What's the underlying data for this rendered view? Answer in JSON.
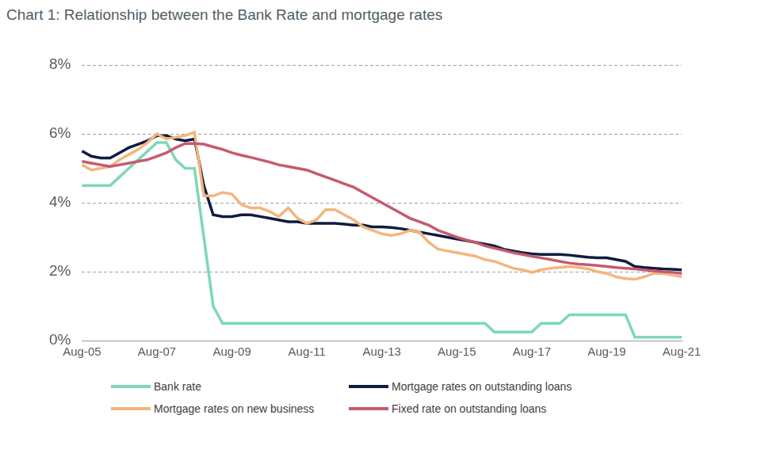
{
  "chart_data": {
    "type": "line",
    "title": "Chart 1: Relationship between the Bank Rate and mortgage rates",
    "categories": [
      "Aug-05",
      null,
      null,
      null,
      null,
      null,
      null,
      null,
      "Aug-07",
      null,
      null,
      null,
      null,
      null,
      null,
      null,
      "Aug-09",
      null,
      null,
      null,
      null,
      null,
      null,
      null,
      "Aug-11",
      null,
      null,
      null,
      null,
      null,
      null,
      null,
      "Aug-13",
      null,
      null,
      null,
      null,
      null,
      null,
      null,
      "Aug-15",
      null,
      null,
      null,
      null,
      null,
      null,
      null,
      "Aug-17",
      null,
      null,
      null,
      null,
      null,
      null,
      null,
      "Aug-19",
      null,
      null,
      null,
      null,
      null,
      null,
      null,
      "Aug-21"
    ],
    "series": [
      {
        "name": "Bank rate",
        "color": "#7dd8b5",
        "values": [
          4.5,
          4.5,
          4.5,
          4.5,
          4.75,
          5.0,
          5.25,
          5.5,
          5.75,
          5.75,
          5.25,
          5.0,
          5.0,
          3.0,
          1.0,
          0.5,
          0.5,
          0.5,
          0.5,
          0.5,
          0.5,
          0.5,
          0.5,
          0.5,
          0.5,
          0.5,
          0.5,
          0.5,
          0.5,
          0.5,
          0.5,
          0.5,
          0.5,
          0.5,
          0.5,
          0.5,
          0.5,
          0.5,
          0.5,
          0.5,
          0.5,
          0.5,
          0.5,
          0.5,
          0.25,
          0.25,
          0.25,
          0.25,
          0.25,
          0.5,
          0.5,
          0.5,
          0.75,
          0.75,
          0.75,
          0.75,
          0.75,
          0.75,
          0.75,
          0.1,
          0.1,
          0.1,
          0.1,
          0.1,
          0.1
        ]
      },
      {
        "name": "Mortgage rates on outstanding loans",
        "color": "#0f1c3f",
        "values": [
          5.5,
          5.35,
          5.3,
          5.3,
          5.45,
          5.6,
          5.7,
          5.8,
          5.95,
          5.95,
          5.85,
          5.8,
          5.85,
          4.5,
          3.65,
          3.6,
          3.6,
          3.65,
          3.65,
          3.6,
          3.55,
          3.5,
          3.45,
          3.45,
          3.4,
          3.4,
          3.4,
          3.4,
          3.38,
          3.35,
          3.35,
          3.3,
          3.3,
          3.28,
          3.25,
          3.2,
          3.15,
          3.1,
          3.05,
          3.0,
          2.95,
          2.9,
          2.85,
          2.8,
          2.75,
          2.65,
          2.6,
          2.55,
          2.52,
          2.5,
          2.5,
          2.5,
          2.48,
          2.45,
          2.42,
          2.4,
          2.4,
          2.35,
          2.3,
          2.15,
          2.12,
          2.1,
          2.08,
          2.07,
          2.05
        ]
      },
      {
        "name": "Mortgage rates on new business",
        "color": "#f3b57e",
        "values": [
          5.1,
          4.95,
          5.0,
          5.05,
          5.25,
          5.4,
          5.55,
          5.75,
          6.0,
          5.85,
          5.9,
          5.95,
          6.05,
          4.2,
          4.2,
          4.3,
          4.25,
          3.95,
          3.85,
          3.85,
          3.75,
          3.6,
          3.85,
          3.55,
          3.4,
          3.5,
          3.8,
          3.8,
          3.65,
          3.5,
          3.3,
          3.2,
          3.1,
          3.05,
          3.1,
          3.2,
          3.15,
          2.85,
          2.65,
          2.6,
          2.55,
          2.5,
          2.45,
          2.35,
          2.3,
          2.2,
          2.1,
          2.05,
          1.98,
          2.05,
          2.1,
          2.12,
          2.15,
          2.12,
          2.08,
          2.0,
          1.95,
          1.85,
          1.8,
          1.78,
          1.85,
          1.95,
          1.95,
          1.9,
          1.85
        ]
      },
      {
        "name": "Fixed rate on outstanding loans",
        "color": "#c65a6e",
        "values": [
          5.2,
          5.15,
          5.1,
          5.05,
          5.1,
          5.15,
          5.2,
          5.25,
          5.35,
          5.45,
          5.6,
          5.72,
          5.72,
          5.7,
          5.62,
          5.55,
          5.45,
          5.38,
          5.32,
          5.25,
          5.18,
          5.1,
          5.05,
          5.0,
          4.95,
          4.85,
          4.75,
          4.65,
          4.55,
          4.45,
          4.3,
          4.15,
          4.0,
          3.85,
          3.7,
          3.55,
          3.45,
          3.35,
          3.2,
          3.1,
          3.0,
          2.92,
          2.85,
          2.75,
          2.68,
          2.62,
          2.55,
          2.5,
          2.45,
          2.4,
          2.35,
          2.3,
          2.25,
          2.22,
          2.2,
          2.18,
          2.15,
          2.12,
          2.1,
          2.08,
          2.05,
          2.02,
          2.0,
          1.98,
          1.95
        ]
      }
    ],
    "ylim": [
      0,
      8
    ],
    "yticks": [
      {
        "value": 0,
        "label": "0%"
      },
      {
        "value": 2,
        "label": "2%"
      },
      {
        "value": 4,
        "label": "4%"
      },
      {
        "value": 6,
        "label": "6%"
      },
      {
        "value": 8,
        "label": "8%"
      }
    ],
    "grid": true,
    "legend": "bottom"
  }
}
